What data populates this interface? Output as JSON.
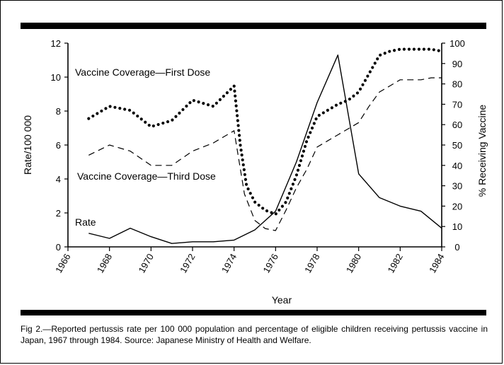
{
  "caption": "Fig 2.—Reported pertussis rate per 100 000 population and percentage of eligible children receiving pertussis vaccine in Japan, 1967 through 1984. Source: Japanese Ministry of Health and Welfare.",
  "chart_data": {
    "type": "line",
    "xlabel": "Year",
    "ylabel": "Rate/100 000",
    "y2label": "% Receiving Vaccine",
    "xlim": [
      1966,
      1984
    ],
    "ylim": [
      0,
      12
    ],
    "y2lim": [
      0,
      100
    ],
    "x_ticks": [
      "1966",
      "1968",
      "1970",
      "1972",
      "1974",
      "1976",
      "1978",
      "1980",
      "1982",
      "1984"
    ],
    "y_ticks": [
      "0",
      "2",
      "4",
      "6",
      "8",
      "10",
      "12"
    ],
    "y2_ticks": [
      "0",
      "10",
      "20",
      "30",
      "40",
      "50",
      "60",
      "70",
      "80",
      "90",
      "100"
    ],
    "grid": false,
    "series": [
      {
        "name": "Vaccine Coverage—First Dose",
        "axis": "right",
        "style": "dotted",
        "x": [
          1967,
          1968,
          1969,
          1970,
          1971,
          1972,
          1973,
          1974,
          1974.3,
          1974.6,
          1975,
          1975.5,
          1976,
          1976.5,
          1977,
          1977.5,
          1978,
          1978.5,
          1979,
          1979.5,
          1980,
          1980.5,
          1981,
          1981.5,
          1982,
          1982.5,
          1983,
          1983.5,
          1984
        ],
        "values": [
          63,
          69,
          67,
          59,
          62,
          72,
          69,
          79,
          50,
          30,
          22,
          18,
          16,
          22,
          35,
          52,
          64,
          67,
          70,
          72,
          76,
          85,
          94,
          96,
          97,
          97,
          97,
          97,
          96
        ]
      },
      {
        "name": "Vaccine Coverage—Third Dose",
        "axis": "right",
        "style": "dashed",
        "x": [
          1967,
          1968,
          1969,
          1970,
          1971,
          1972,
          1973,
          1974,
          1974.5,
          1975,
          1975.5,
          1976,
          1976.5,
          1977,
          1977.5,
          1978,
          1978.5,
          1979,
          1979.5,
          1980,
          1980.5,
          1981,
          1981.5,
          1982,
          1982.5,
          1983,
          1983.5,
          1984
        ],
        "values": [
          45,
          50,
          47,
          40,
          40,
          47,
          51,
          57,
          26,
          13,
          9,
          8,
          18,
          29,
          38,
          49,
          52,
          55,
          58,
          61,
          69,
          76,
          79,
          82,
          82,
          82,
          83,
          83
        ]
      },
      {
        "name": "Rate",
        "axis": "left",
        "style": "solid",
        "x": [
          1967,
          1968,
          1969,
          1970,
          1971,
          1972,
          1973,
          1974,
          1975,
          1976,
          1977,
          1978,
          1979,
          1980,
          1981,
          1982,
          1983,
          1984
        ],
        "values": [
          0.8,
          0.5,
          1.1,
          0.6,
          0.2,
          0.3,
          0.3,
          0.4,
          1.0,
          2.1,
          5.0,
          8.5,
          11.3,
          4.3,
          2.9,
          2.4,
          2.1,
          1.1
        ]
      }
    ]
  }
}
